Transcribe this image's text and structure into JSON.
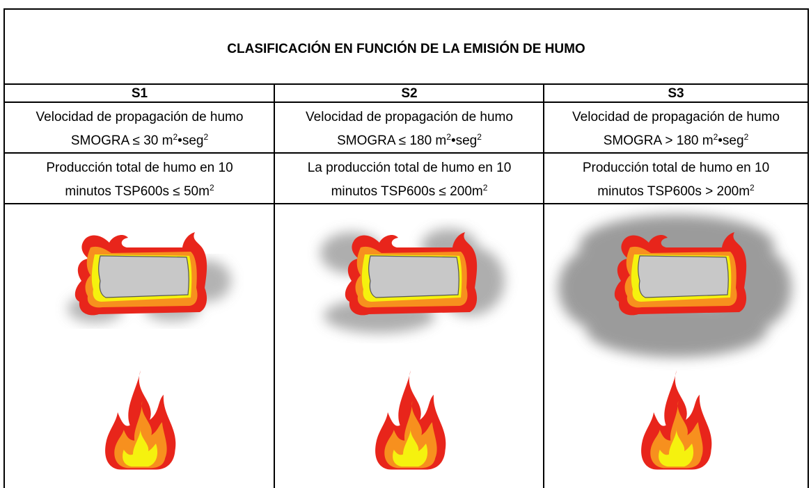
{
  "title": "CLASIFICACIÓN EN FUNCIÓN DE LA EMISIÓN DE HUMO",
  "columns": [
    "S1",
    "S2",
    "S3"
  ],
  "rows": [
    [
      {
        "line1": "Velocidad de propagación de humo",
        "line2": [
          "SMOGRA ≤ 30 m",
          "2",
          "•seg",
          "2"
        ]
      },
      {
        "line1": "Velocidad de propagación de humo",
        "line2": [
          "SMOGRA ≤ 180 m",
          "2",
          "•seg",
          "2"
        ]
      },
      {
        "line1": "Velocidad de propagación de humo",
        "line2": [
          "SMOGRA > 180 m",
          "2",
          "•seg",
          "2"
        ]
      }
    ],
    [
      {
        "line1": "Producción total de humo en 10",
        "line2": [
          "minutos TSP600s ≤ 50m",
          "2"
        ]
      },
      {
        "line1": "La producción total de humo en 10",
        "line2": [
          "minutos TSP600s ≤ 200m",
          "2"
        ]
      },
      {
        "line1": "Producción total de humo en 10",
        "line2": [
          "minutos TSP600s > 200m",
          "2"
        ]
      }
    ]
  ]
}
